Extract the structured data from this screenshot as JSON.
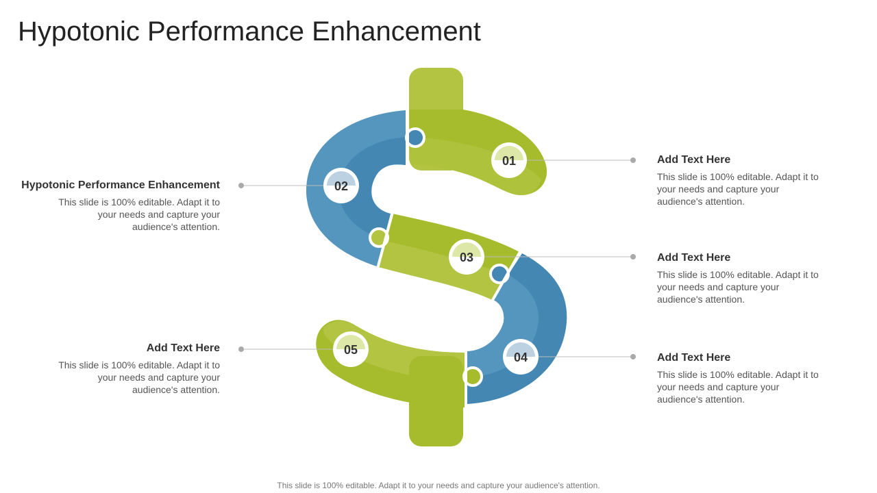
{
  "title": "Hypotonic Performance Enhancement",
  "colors": {
    "green": "#a6bc2c",
    "green_light": "#b2c441",
    "blue": "#4487b3",
    "blue_light": "#5596bf",
    "connector": "#bbbbbb",
    "dot": "#aaaaaa"
  },
  "steps": [
    {
      "number": "01",
      "heading": "Add Text Here",
      "body": "This slide is 100% editable. Adapt it to your needs and capture your audience's attention."
    },
    {
      "number": "02",
      "heading": "Hypotonic Performance Enhancement",
      "body": "This slide is 100% editable. Adapt it to your needs and capture your audience's attention."
    },
    {
      "number": "03",
      "heading": "Add Text Here",
      "body": "This slide is 100% editable. Adapt it to your needs and capture your audience's attention."
    },
    {
      "number": "04",
      "heading": "Add Text Here",
      "body": "This slide is 100% editable. Adapt it to your needs and capture your audience's attention."
    },
    {
      "number": "05",
      "heading": "Add Text Here",
      "body": "This slide is 100% editable. Adapt it to your needs and capture your audience's attention."
    }
  ],
  "footer": "This slide is 100% editable. Adapt it to your needs and capture your audience's attention."
}
